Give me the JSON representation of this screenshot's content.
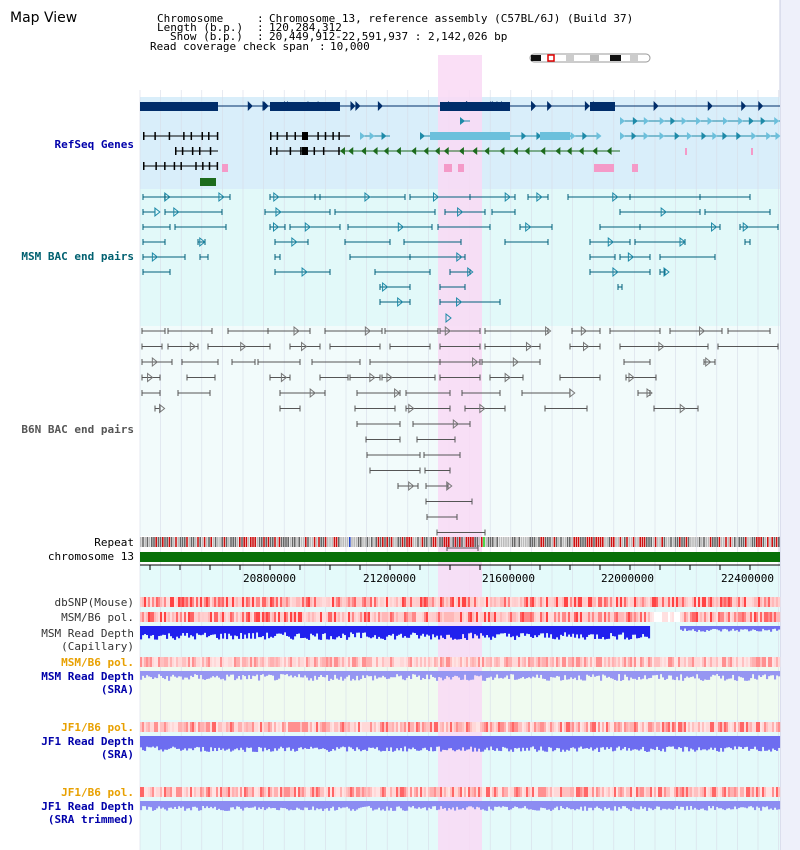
{
  "page_title": "Map View",
  "info": {
    "chromosome_key": "Chromosome",
    "chromosome_val": "Chromosome 13, reference assembly (C57BL/6J) (Build 37)",
    "length_key": "Length (b.p.)",
    "length_val": "120,284,312",
    "show_key": "Show (b.p.)",
    "show_val": "20,449,912-22,591,937 : 2,142,026 bp",
    "coverage_key": "Read coverage check span",
    "coverage_val": "10,000"
  },
  "tracks": {
    "refseq": "RefSeq Genes",
    "msm_bac": "MSM BAC end pairs",
    "b6n_bac": "B6N BAC end pairs",
    "repeat": "Repeat",
    "chromosome": "chromosome 13",
    "dbsnp": "dbSNP(Mouse)",
    "msm_b6_pol": "MSM/B6 pol.",
    "msm_read_depth_cap_1": "MSM Read Depth",
    "msm_read_depth_cap_2": "(Capillary)",
    "msm_b6_pol_sra": "MSM/B6 pol.",
    "msm_read_depth_sra_1": "MSM Read Depth",
    "msm_read_depth_sra_2": "(SRA)",
    "jf1_b6_pol": "JF1/B6 pol.",
    "jf1_read_depth_1": "JF1 Read Depth",
    "jf1_read_depth_2": "(SRA)",
    "jf1_b6_pol_trim": "JF1/B6 pol.",
    "jf1_read_depth_trim_1": "JF1 Read Depth",
    "jf1_read_depth_trim_2": "(SRA trimmed)"
  },
  "axis": {
    "ticks": [
      "20800000",
      "21200000",
      "21600000",
      "22000000",
      "22400000"
    ]
  },
  "colors": {
    "highlight": "#f9d9f5",
    "refseq_bg": "#d9eefa",
    "msm_bg": "#e2f9f9",
    "b6n_bg": "#f2fbfb",
    "gene_dark": "#002d6a",
    "gene_teal": "#1e8aa8",
    "gene_green": "#1d6b1d",
    "gene_pink": "#f49ac8",
    "chromosome_bar": "#087008",
    "depth_blue": "#2020ee",
    "depth_light": "#7878f0",
    "label_blue": "#0000aa",
    "label_orange": "#e8a000"
  }
}
